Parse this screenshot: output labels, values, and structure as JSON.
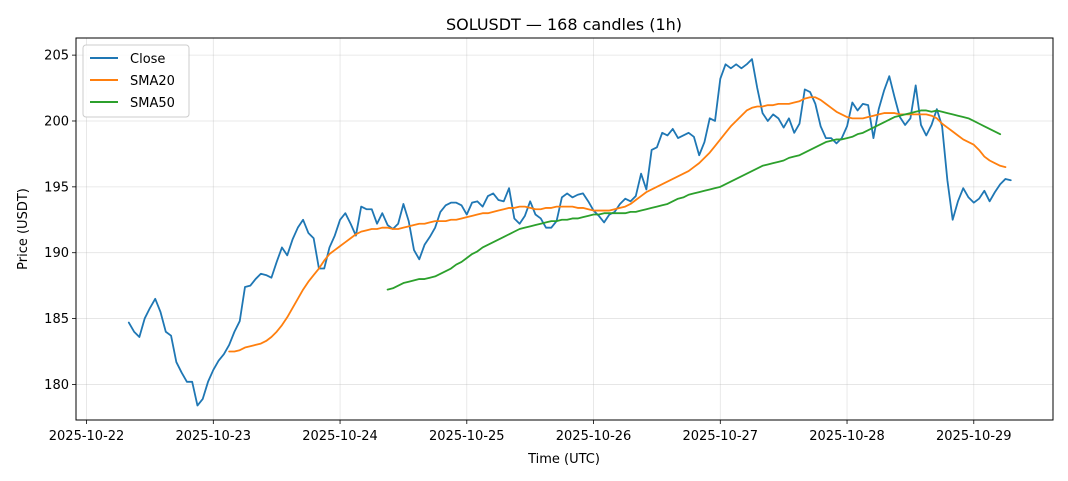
{
  "chart_data": {
    "type": "line",
    "title": "SOLUSDT — 168 candles (1h)",
    "xlabel": "Time (UTC)",
    "ylabel": "Price (USDT)",
    "x_ticks": [
      "2025-10-22",
      "2025-10-23",
      "2025-10-24",
      "2025-10-25",
      "2025-10-26",
      "2025-10-27",
      "2025-10-28",
      "2025-10-29"
    ],
    "y_ticks": [
      "180",
      "185",
      "190",
      "195",
      "200",
      "205"
    ],
    "xlim": [
      "2025-10-21T22:00",
      "2025-10-29T15:00"
    ],
    "ylim": [
      177.3,
      206.3
    ],
    "grid": true,
    "legend_position": "top-left",
    "x_start": "2025-10-22T08:00",
    "x_step_hours": 1,
    "series": [
      {
        "name": "Close",
        "color": "#1f77b4",
        "offset": 0,
        "values": [
          184.7,
          184.0,
          183.6,
          185.0,
          185.8,
          186.5,
          185.5,
          184.0,
          183.7,
          181.7,
          180.9,
          180.2,
          180.2,
          178.4,
          178.9,
          180.2,
          181.1,
          181.8,
          182.3,
          183.0,
          184.0,
          184.8,
          187.4,
          187.5,
          188.0,
          188.4,
          188.3,
          188.1,
          189.3,
          190.4,
          189.8,
          191.0,
          191.9,
          192.5,
          191.5,
          191.1,
          188.8,
          188.8,
          190.4,
          191.3,
          192.5,
          193.0,
          192.2,
          191.3,
          193.5,
          193.3,
          193.3,
          192.2,
          193.0,
          192.1,
          191.8,
          192.2,
          193.7,
          192.4,
          190.2,
          189.5,
          190.6,
          191.2,
          191.9,
          193.1,
          193.6,
          193.8,
          193.8,
          193.6,
          192.9,
          193.8,
          193.9,
          193.5,
          194.3,
          194.5,
          194.0,
          193.9,
          194.9,
          192.6,
          192.2,
          192.8,
          193.9,
          192.9,
          192.6,
          191.9,
          191.9,
          192.4,
          194.2,
          194.5,
          194.2,
          194.4,
          194.5,
          193.9,
          193.2,
          192.8,
          192.3,
          192.9,
          193.1,
          193.7,
          194.1,
          193.9,
          194.3,
          196.0,
          194.8,
          197.8,
          198.0,
          199.1,
          198.9,
          199.4,
          198.7,
          198.9,
          199.1,
          198.8,
          197.4,
          198.4,
          200.2,
          200.0,
          203.2,
          204.3,
          204.0,
          204.3,
          204.0,
          204.3,
          204.7,
          202.5,
          200.6,
          200.0,
          200.5,
          200.2,
          199.5,
          200.2,
          199.1,
          199.8,
          202.4,
          202.2,
          201.3,
          199.6,
          198.7,
          198.7,
          198.3,
          198.7,
          199.6,
          201.4,
          200.8,
          201.3,
          201.2,
          198.7,
          200.9,
          202.3,
          203.4,
          201.8,
          200.3,
          199.7,
          200.2,
          202.7,
          199.7,
          198.9,
          199.7,
          200.9,
          199.6,
          195.5,
          192.5,
          193.9,
          194.9,
          194.2,
          193.8,
          194.1,
          194.7,
          193.9,
          194.6,
          195.2,
          195.6,
          195.5
        ]
      },
      {
        "name": "SMA20",
        "color": "#ff7f0e",
        "offset": 19,
        "values": [
          182.5,
          182.5,
          182.6,
          182.8,
          182.9,
          183.0,
          183.1,
          183.3,
          183.6,
          184.0,
          184.5,
          185.1,
          185.8,
          186.5,
          187.2,
          187.8,
          188.3,
          188.8,
          189.4,
          189.9,
          190.2,
          190.5,
          190.8,
          191.1,
          191.4,
          191.6,
          191.7,
          191.8,
          191.8,
          191.9,
          191.9,
          191.8,
          191.8,
          191.9,
          192.0,
          192.1,
          192.2,
          192.2,
          192.3,
          192.4,
          192.4,
          192.4,
          192.5,
          192.5,
          192.6,
          192.7,
          192.8,
          192.9,
          193.0,
          193.0,
          193.1,
          193.2,
          193.3,
          193.4,
          193.4,
          193.5,
          193.5,
          193.4,
          193.3,
          193.3,
          193.4,
          193.4,
          193.5,
          193.5,
          193.5,
          193.5,
          193.4,
          193.4,
          193.3,
          193.2,
          193.2,
          193.2,
          193.2,
          193.3,
          193.4,
          193.5,
          193.7,
          194.0,
          194.3,
          194.6,
          194.8,
          195.0,
          195.2,
          195.4,
          195.6,
          195.8,
          196.0,
          196.2,
          196.5,
          196.8,
          197.2,
          197.6,
          198.1,
          198.6,
          199.1,
          199.6,
          200.0,
          200.4,
          200.8,
          201.0,
          201.1,
          201.1,
          201.2,
          201.2,
          201.3,
          201.3,
          201.3,
          201.4,
          201.5,
          201.7,
          201.8,
          201.8,
          201.6,
          201.3,
          201.0,
          200.7,
          200.5,
          200.3,
          200.2,
          200.2,
          200.2,
          200.3,
          200.4,
          200.5,
          200.6,
          200.6,
          200.6,
          200.5,
          200.5,
          200.5,
          200.5,
          200.5,
          200.5,
          200.4,
          200.2,
          199.8,
          199.5,
          199.2,
          198.9,
          198.6,
          198.4,
          198.2,
          197.8,
          197.3,
          197.0,
          196.8,
          196.6,
          196.5
        ]
      },
      {
        "name": "SMA50",
        "color": "#2ca02c",
        "offset": 49,
        "values": [
          187.2,
          187.3,
          187.5,
          187.7,
          187.8,
          187.9,
          188.0,
          188.0,
          188.1,
          188.2,
          188.4,
          188.6,
          188.8,
          189.1,
          189.3,
          189.6,
          189.9,
          190.1,
          190.4,
          190.6,
          190.8,
          191.0,
          191.2,
          191.4,
          191.6,
          191.8,
          191.9,
          192.0,
          192.1,
          192.2,
          192.3,
          192.4,
          192.4,
          192.5,
          192.5,
          192.6,
          192.6,
          192.7,
          192.8,
          192.9,
          192.9,
          193.0,
          193.0,
          193.0,
          193.0,
          193.0,
          193.1,
          193.1,
          193.2,
          193.3,
          193.4,
          193.5,
          193.6,
          193.7,
          193.9,
          194.1,
          194.2,
          194.4,
          194.5,
          194.6,
          194.7,
          194.8,
          194.9,
          195.0,
          195.2,
          195.4,
          195.6,
          195.8,
          196.0,
          196.2,
          196.4,
          196.6,
          196.7,
          196.8,
          196.9,
          197.0,
          197.2,
          197.3,
          197.4,
          197.6,
          197.8,
          198.0,
          198.2,
          198.4,
          198.5,
          198.6,
          198.6,
          198.7,
          198.8,
          199.0,
          199.1,
          199.3,
          199.5,
          199.7,
          199.9,
          200.1,
          200.3,
          200.4,
          200.5,
          200.6,
          200.7,
          200.8,
          200.8,
          200.7,
          200.8,
          200.7,
          200.6,
          200.5,
          200.4,
          200.3,
          200.2,
          200.0,
          199.8,
          199.6,
          199.4,
          199.2,
          199.0
        ]
      }
    ]
  }
}
